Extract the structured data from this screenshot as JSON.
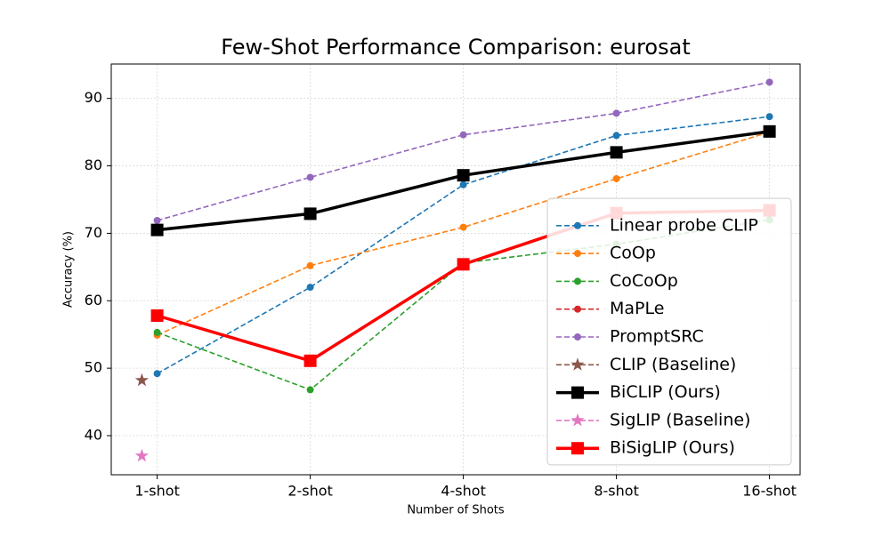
{
  "chart_data": {
    "type": "line",
    "title": "Few-Shot Performance Comparison: eurosat",
    "xlabel": "Number of Shots",
    "ylabel": "Accuracy (%)",
    "x": [
      0,
      1,
      2,
      3,
      4
    ],
    "xlim": [
      -0.3,
      4.2
    ],
    "xticks": [
      {
        "value": 0,
        "label": "1-shot"
      },
      {
        "value": 1,
        "label": "2-shot"
      },
      {
        "value": 2,
        "label": "4-shot"
      },
      {
        "value": 3,
        "label": "8-shot"
      },
      {
        "value": 4,
        "label": "16-shot"
      }
    ],
    "ylim": [
      34.2,
      95.1
    ],
    "yticks": [
      40,
      50,
      60,
      70,
      80,
      90
    ],
    "grid": true,
    "legend": "center right",
    "series": [
      {
        "name": "Linear probe CLIP",
        "color": "#1f77b4",
        "linestyle": "dashed",
        "marker": "circle",
        "values": [
          49.2,
          62.0,
          77.2,
          84.5,
          87.3
        ]
      },
      {
        "name": "CoOp",
        "color": "#ff7f0e",
        "linestyle": "dashed",
        "marker": "circle",
        "values": [
          54.9,
          65.2,
          70.9,
          78.1,
          85.0
        ]
      },
      {
        "name": "CoCoOp",
        "color": "#2ca02c",
        "linestyle": "dashed",
        "marker": "circle",
        "values": [
          55.3,
          46.8,
          65.6,
          68.4,
          72.0
        ]
      },
      {
        "name": "MaPLe",
        "color": "#d62728",
        "linestyle": "dashed",
        "marker": "circle",
        "values": [
          null,
          null,
          null,
          null,
          null
        ]
      },
      {
        "name": "PromptSRC",
        "color": "#9467bd",
        "linestyle": "dashed",
        "marker": "circle",
        "values": [
          71.9,
          78.3,
          84.6,
          87.8,
          92.4
        ]
      },
      {
        "name": "CLIP (Baseline)",
        "color": "#8c564b",
        "linestyle": "dashed",
        "marker": "star",
        "x": [
          -0.1
        ],
        "values": [
          48.2
        ]
      },
      {
        "name": "BiCLIP (Ours)",
        "color": "#000000",
        "linestyle": "solid",
        "marker": "square",
        "values": [
          70.5,
          72.9,
          78.6,
          82.0,
          85.1
        ]
      },
      {
        "name": "SigLIP (Baseline)",
        "color": "#e377c2",
        "linestyle": "dashed",
        "marker": "star",
        "x": [
          -0.1
        ],
        "values": [
          37.0
        ]
      },
      {
        "name": "BiSigLIP (Ours)",
        "color": "#ff0000",
        "linestyle": "solid",
        "marker": "square",
        "values": [
          57.8,
          51.1,
          65.4,
          73.0,
          73.4
        ]
      }
    ]
  }
}
